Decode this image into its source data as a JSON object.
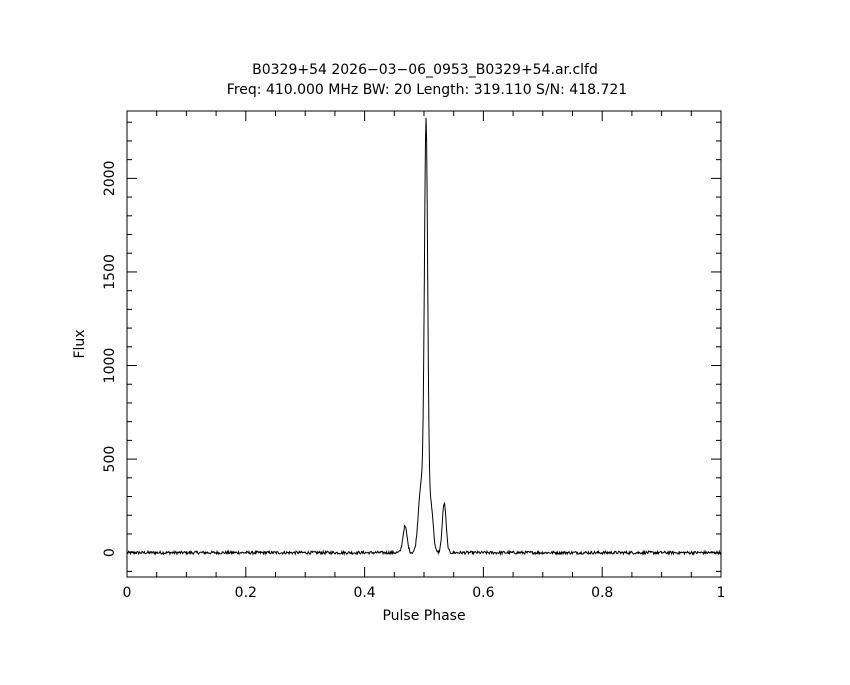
{
  "chart_data": {
    "type": "line",
    "title": "B0329+54 2026−03−06_0953_B0329+54.ar.clfd",
    "subtitle": "Freq: 410.000 MHz BW: 20 Length: 319.110 S/N: 418.721",
    "xlabel": "Pulse Phase",
    "ylabel": "Flux",
    "xlim": [
      0,
      1
    ],
    "ylim": [
      -130,
      2360
    ],
    "x_ticks": [
      {
        "value": 0,
        "label": "0"
      },
      {
        "value": 0.2,
        "label": "0.2"
      },
      {
        "value": 0.4,
        "label": "0.4"
      },
      {
        "value": 0.6,
        "label": "0.6"
      },
      {
        "value": 0.8,
        "label": "0.8"
      },
      {
        "value": 1,
        "label": "1"
      }
    ],
    "y_ticks": [
      {
        "value": 0,
        "label": "0"
      },
      {
        "value": 500,
        "label": "500"
      },
      {
        "value": 1000,
        "label": "1000"
      },
      {
        "value": 1500,
        "label": "1500"
      },
      {
        "value": 2000,
        "label": "2000"
      }
    ],
    "grid": false,
    "line_color": "#000000",
    "series": [
      {
        "baseline": 0,
        "noise_amplitude": 8,
        "peaks": [
          {
            "center": 0.468,
            "height": 140,
            "width": 0.0035
          },
          {
            "center": 0.495,
            "height": 360,
            "width": 0.0045
          },
          {
            "center": 0.5035,
            "height": 2250,
            "width": 0.0028
          },
          {
            "center": 0.512,
            "height": 250,
            "width": 0.0035
          },
          {
            "center": 0.534,
            "height": 265,
            "width": 0.0032
          }
        ]
      }
    ]
  }
}
